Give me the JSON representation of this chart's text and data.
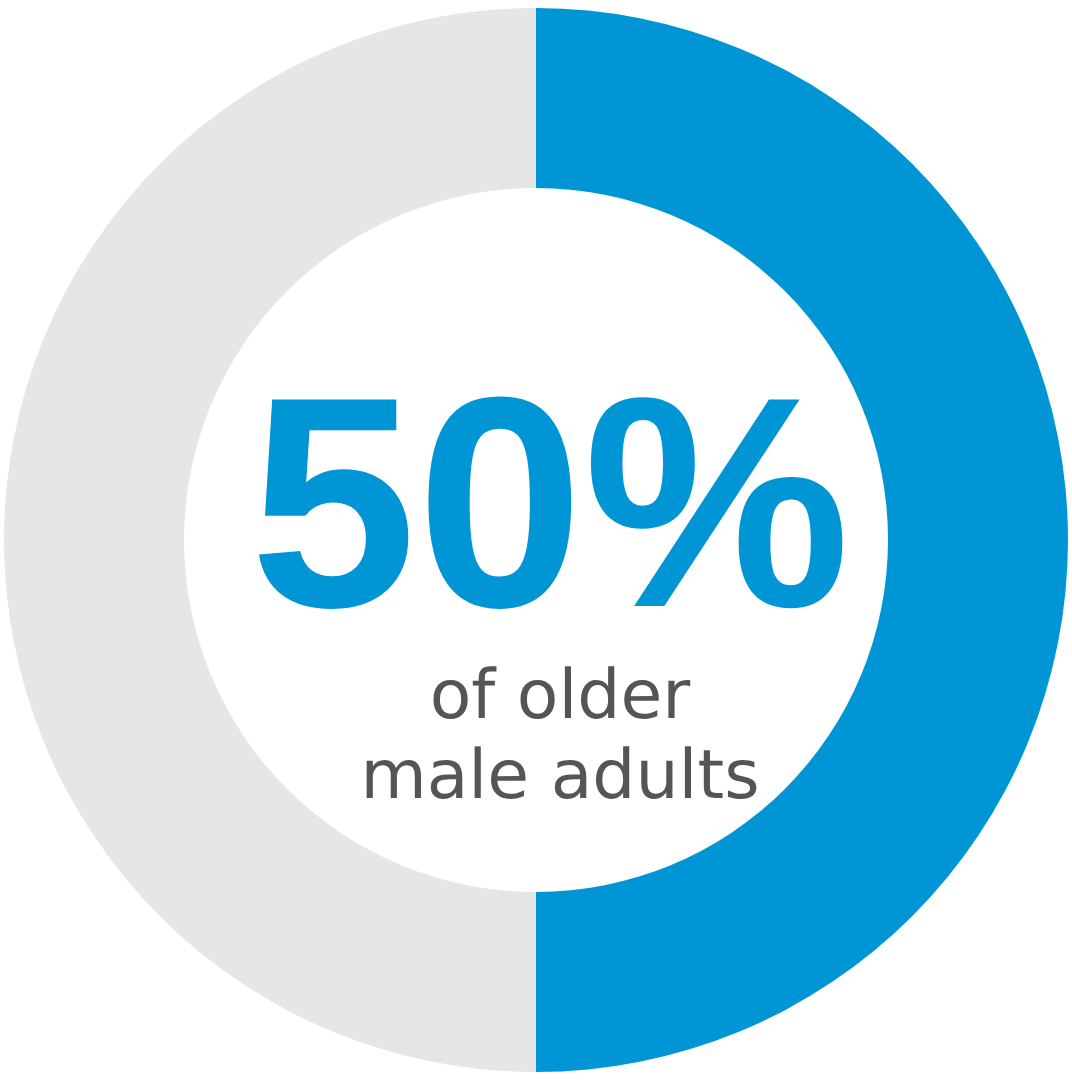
{
  "chart_data": {
    "type": "donut",
    "categories": [
      null,
      null
    ],
    "values": [
      50,
      50
    ],
    "colors": [
      "#0096d6",
      "#e6e6e6"
    ],
    "value_labels": [
      "50%",
      null
    ],
    "annotations": [
      "of older male adults"
    ]
  }
}
